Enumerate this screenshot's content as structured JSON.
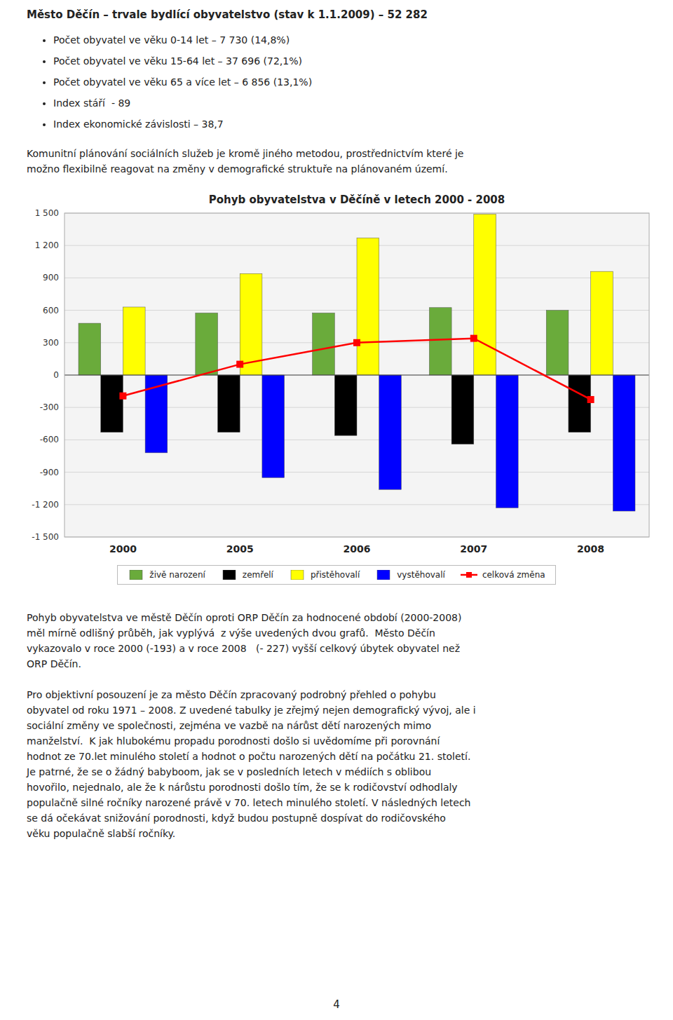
{
  "header": "Město Děčín – trvale bydlící obyvatelstvo (stav k 1.1.2009) – 52 282",
  "bullets": [
    "Počet obyvatel ve věku 0-14 let – 7 730 (14,8%)",
    "Počet obyvatel ve věku 15-64 let – 37 696 (72,1%)",
    "Počet obyvatel ve věku 65 a více let – 6 856 (13,1%)",
    "Index stáří  - 89",
    "Index ekonomické závislosti – 38,7"
  ],
  "paragraphs": [
    [
      "Komunitní plánování sociálních služeb je kromě jiného metodou, prostřednictvím které je",
      "možno flexibilně reagovat na změny v demografické struktuře na plánovaném území."
    ],
    [
      "Pohyb obyvatelstva ve městě Děčín oproti ORP Děčín za hodnocené období (2000-2008)",
      "měl mírně odlišný průběh, jak vyplývá  z výše uvedených dvou grafů.  Město Děčín",
      "vykazovalo v roce 2000 (-193) a v roce 2008   (- 227) vyšší celkový úbytek obyvatel než",
      "ORP Děčín."
    ],
    [
      "Pro objektivní posouzení je za město Děčín zpracovaný podrobný přehled o pohybu",
      "obyvatel od roku 1971 – 2008. Z uvedené tabulky je zřejmý nejen demografický vývoj, ale i",
      "sociální změny ve společnosti, zejména ve vazbě na nárůst dětí narozených mimo",
      "manželství.  K jak hlubokému propadu porodnosti došlo si uvědomíme při porovnání",
      "hodnot ze 70.let minulého století a hodnot o počtu narozených dětí na počátku 21. století.",
      "Je patrné, že se o žádný babyboom, jak se v posledních letech v médiích s oblibou",
      "hovořilo, nejednalo, ale že k nárůstu porodnosti došlo tím, že se k rodičovství odhodlaly",
      "populačně silné ročníky narozené právě v 70. letech minulého století. V následných letech",
      "se dá očekávat snižování porodnosti, když budou postupně dospívat do rodičovského",
      "věku populačně slabší ročníky."
    ]
  ],
  "page_number": "4",
  "chart_data": {
    "type": "bar",
    "title": "Pohyb obyvatelstva v Děčíně v letech 2000 - 2008",
    "categories": [
      "2000",
      "2005",
      "2006",
      "2007",
      "2008"
    ],
    "series": [
      {
        "name": "živě narození",
        "color": "#6AAB3B",
        "values": [
          480,
          575,
          575,
          625,
          600
        ]
      },
      {
        "name": "zemřelí",
        "color": "#000000",
        "values": [
          -530,
          -530,
          -560,
          -640,
          -530
        ]
      },
      {
        "name": "přistěhovalí",
        "color": "#FFFF00",
        "values": [
          630,
          940,
          1270,
          1490,
          960
        ]
      },
      {
        "name": "vystěhovalí",
        "color": "#0000FF",
        "values": [
          -720,
          -950,
          -1060,
          -1230,
          -1260
        ]
      },
      {
        "name": "celková změna",
        "type": "line",
        "marker": "square",
        "color": "#FF0000",
        "values": [
          -193,
          100,
          300,
          340,
          -227
        ]
      }
    ],
    "ylim": [
      -1500,
      1500
    ],
    "yticks": [
      {
        "value": -1500,
        "label": "-1 500"
      },
      {
        "value": -1200,
        "label": "-1 200"
      },
      -900,
      -600,
      -300,
      0,
      300,
      600,
      900,
      {
        "value": 1200,
        "label": "1 200"
      },
      {
        "value": 1500,
        "label": "1 500"
      }
    ],
    "grid": true,
    "legend": "bottom"
  }
}
